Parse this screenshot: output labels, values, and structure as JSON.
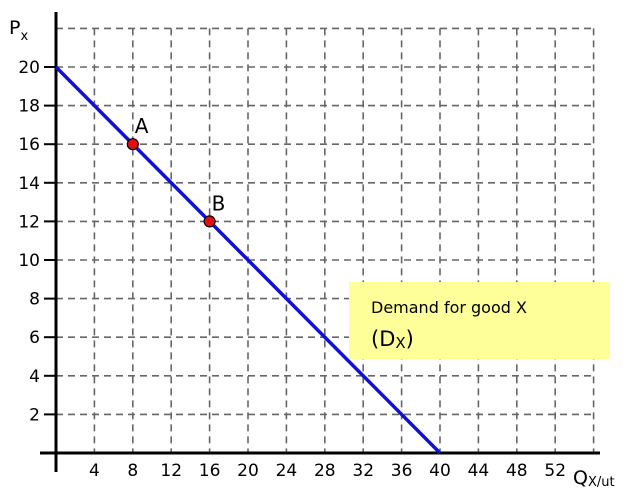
{
  "chart_data": {
    "type": "line",
    "xlabel": "Q",
    "xlabel_sub": "X/ut",
    "ylabel": "P",
    "ylabel_sub": "x",
    "xlim": [
      0,
      56
    ],
    "ylim": [
      0,
      22
    ],
    "x_ticks": [
      4,
      8,
      12,
      16,
      20,
      24,
      28,
      32,
      36,
      40,
      44,
      48,
      52
    ],
    "y_ticks": [
      2,
      4,
      6,
      8,
      10,
      12,
      14,
      16,
      18,
      20
    ],
    "grid": true,
    "grid_style": "dashed",
    "series": [
      {
        "color": "#1010d8",
        "x": [
          0,
          40
        ],
        "y": [
          20,
          0
        ]
      }
    ],
    "points": [
      {
        "label": "A",
        "x": 8,
        "y": 16,
        "color": "#e01010"
      },
      {
        "label": "B",
        "x": 16,
        "y": 12,
        "color": "#e01010"
      }
    ],
    "annotation": {
      "line1": "Demand for good X",
      "line2_main": "(D",
      "line2_sub": "X",
      "line2_close": ")",
      "background": "#ffff99"
    }
  }
}
